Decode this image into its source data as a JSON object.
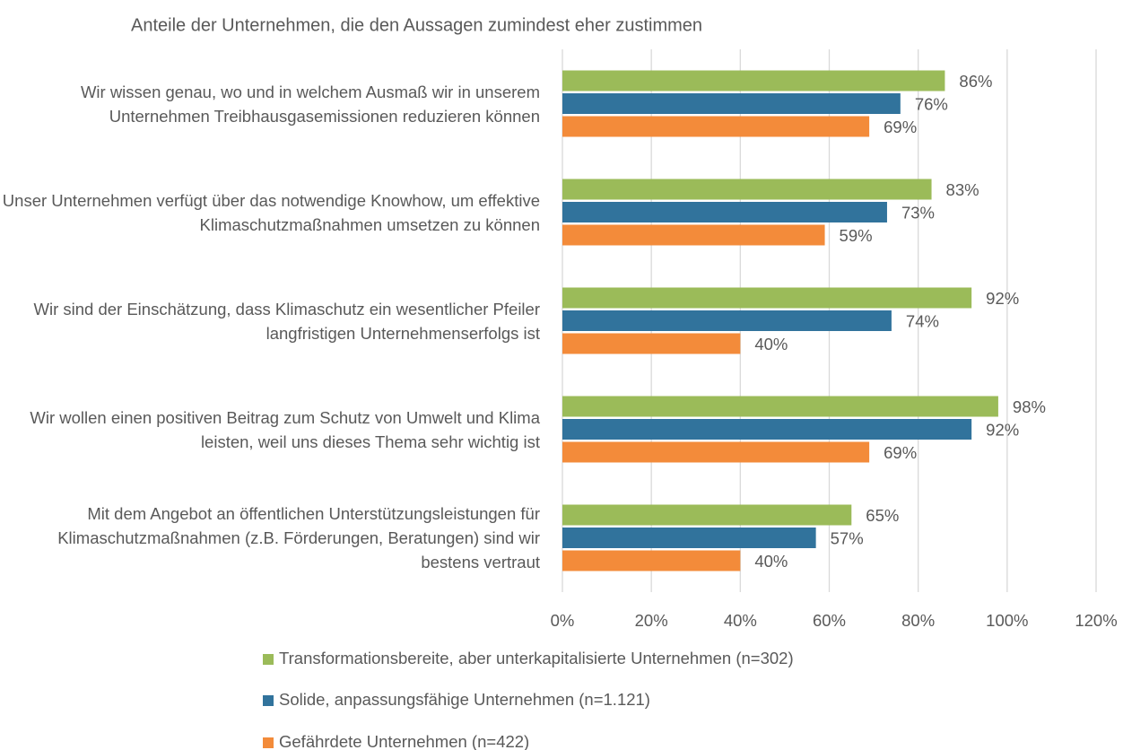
{
  "chart_data": {
    "type": "hbar",
    "title": "Anteile der Unternehmen, die den Aussagen zumindest eher zustimmen",
    "categories": [
      "Wir wissen genau, wo und in welchem Ausmaß wir in unserem Unternehmen Treibhausgasemissionen reduzieren können",
      "Unser Unternehmen verfügt über das notwendige Knowhow, um effektive Klimaschutzmaßnahmen umsetzen zu können",
      "Wir sind der Einschätzung, dass Klimaschutz ein wesentlicher Pfeiler langfristigen Unternehmenserfolgs ist",
      "Wir wollen einen positiven Beitrag zum Schutz von Umwelt und Klima leisten, weil uns dieses Thema sehr wichtig ist",
      "Mit dem Angebot an öffentlichen Unterstützungsleistungen für Klimaschutzmaßnahmen (z.B. Förderungen, Beratungen) sind wir bestens vertraut"
    ],
    "series": [
      {
        "name": "Transformationsbereite, aber unterkapitalisierte Unternehmen (n=302)",
        "color": "#9bbb59",
        "values": [
          86,
          83,
          92,
          98,
          65
        ],
        "value_labels": [
          "86%",
          "83%",
          "92%",
          "98%",
          "65%"
        ]
      },
      {
        "name": "Solide, anpassungsfähige Unternehmen (n=1.121)",
        "color": "#31739c",
        "values": [
          76,
          73,
          74,
          92,
          57
        ],
        "value_labels": [
          "76%",
          "73%",
          "74%",
          "92%",
          "57%"
        ]
      },
      {
        "name": "Gefährdete Unternehmen (n=422)",
        "color": "#f38b3a",
        "values": [
          69,
          59,
          40,
          69,
          40
        ],
        "value_labels": [
          "69%",
          "59%",
          "40%",
          "69%",
          "40%"
        ]
      }
    ],
    "xlim": [
      0,
      120
    ],
    "xticks": [
      {
        "value": 0,
        "label": "0%"
      },
      {
        "value": 20,
        "label": "20%"
      },
      {
        "value": 40,
        "label": "40%"
      },
      {
        "value": 60,
        "label": "60%"
      },
      {
        "value": 80,
        "label": "80%"
      },
      {
        "value": 100,
        "label": "100%"
      },
      {
        "value": 120,
        "label": "120%"
      }
    ],
    "grid": true,
    "legend": "bottom"
  }
}
